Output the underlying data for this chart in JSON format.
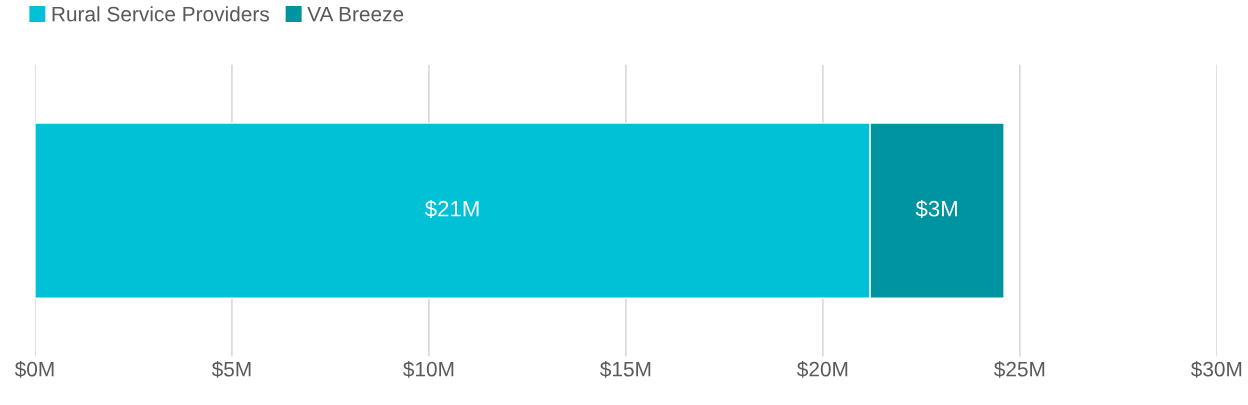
{
  "chart_data": {
    "type": "bar",
    "orientation": "horizontal",
    "stacked": true,
    "categories": [
      null
    ],
    "series": [
      {
        "name": "Rural Service Providers",
        "color": "#00c1d5",
        "values": [
          21.2
        ],
        "value_labels": [
          "$21M"
        ]
      },
      {
        "name": "VA Breeze",
        "color": "#0093a0",
        "values": [
          3.4
        ],
        "value_labels": [
          "$3M"
        ]
      }
    ],
    "xlim": [
      0,
      30
    ],
    "xticks": [
      {
        "value": 0,
        "label": "$0M"
      },
      {
        "value": 5,
        "label": "$5M"
      },
      {
        "value": 10,
        "label": "$10M"
      },
      {
        "value": 15,
        "label": "$15M"
      },
      {
        "value": 20,
        "label": "$20M"
      },
      {
        "value": 25,
        "label": "$25M"
      },
      {
        "value": 30,
        "label": "$30M"
      }
    ],
    "grid": "x",
    "legend": "top left"
  }
}
